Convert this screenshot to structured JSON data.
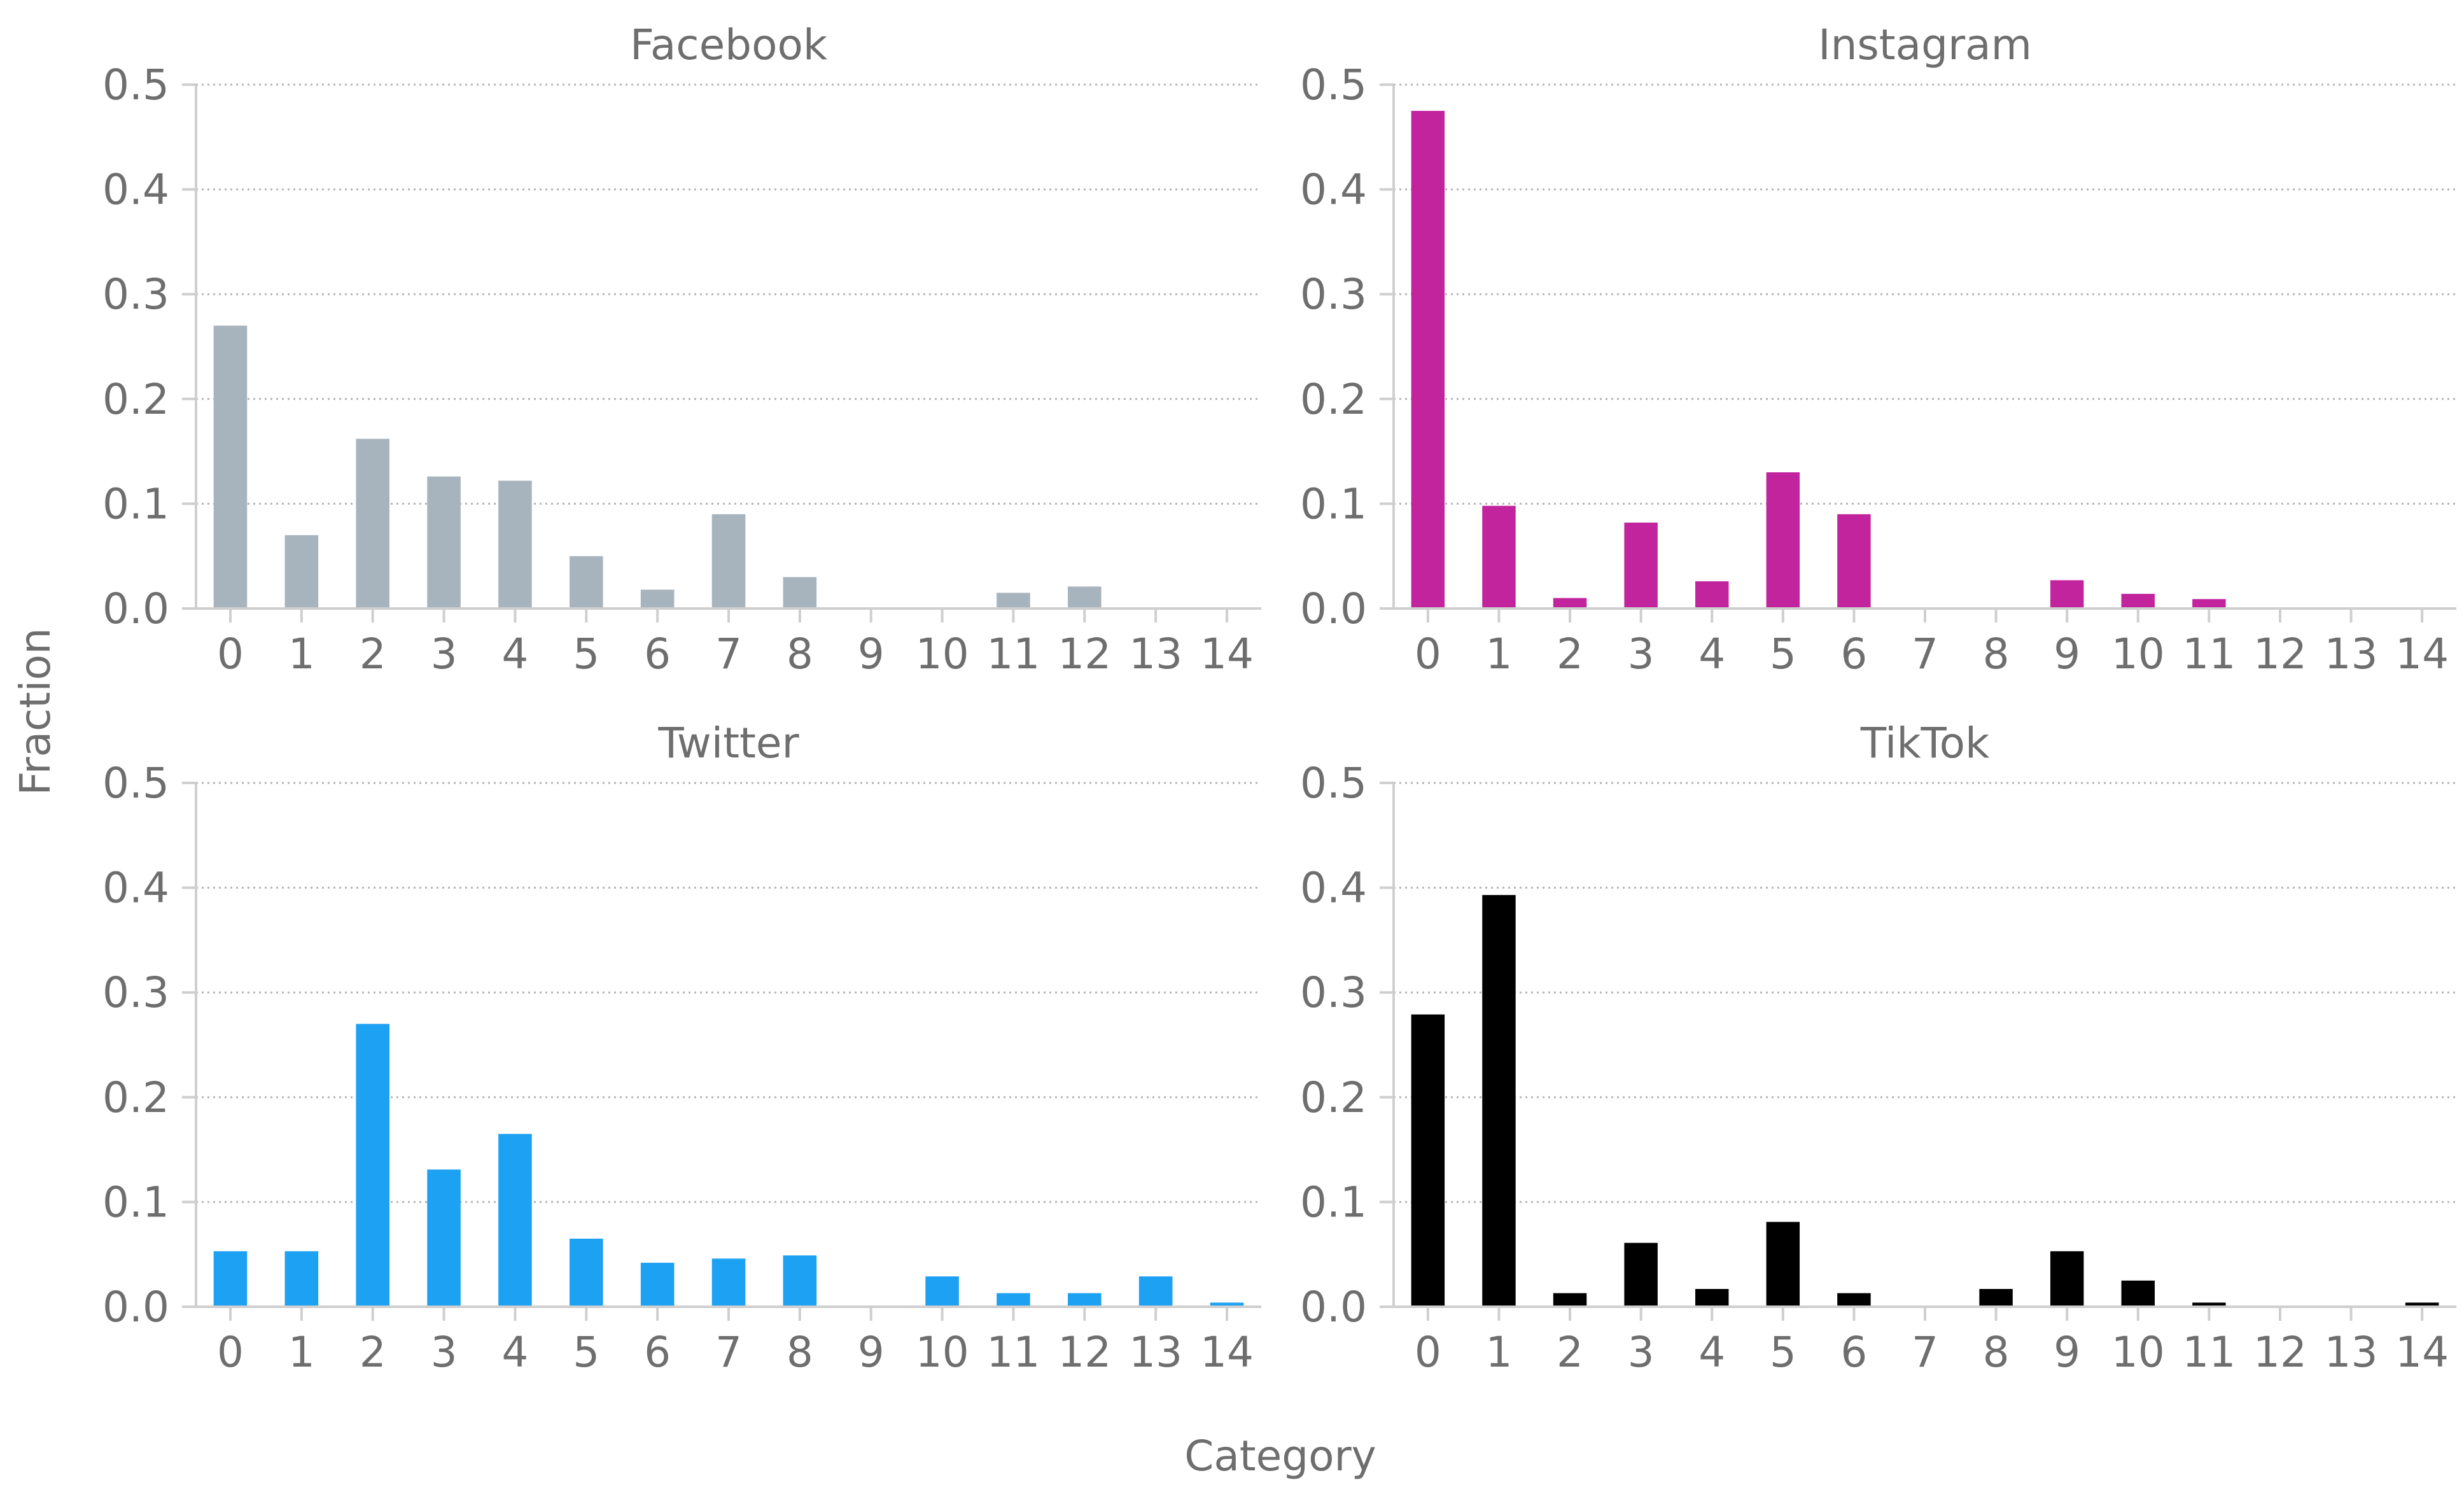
{
  "chart_data": {
    "type": "bar",
    "shared_xlabel": "Category",
    "shared_ylabel": "Fraction",
    "categories": [
      "0",
      "1",
      "2",
      "3",
      "4",
      "5",
      "6",
      "7",
      "8",
      "9",
      "10",
      "11",
      "12",
      "13",
      "14"
    ],
    "yticks": [
      "0.0",
      "0.1",
      "0.2",
      "0.3",
      "0.4",
      "0.5"
    ],
    "ylim": [
      0,
      0.5
    ],
    "grid": "horizontal-dotted",
    "panels": [
      {
        "title": "Facebook",
        "color": "#a8b4bd",
        "values": [
          0.27,
          0.07,
          0.162,
          0.126,
          0.122,
          0.05,
          0.018,
          0.09,
          0.03,
          0.0,
          0.0,
          0.015,
          0.021,
          0.0,
          0.0
        ]
      },
      {
        "title": "Instagram",
        "color": "#c1249d",
        "values": [
          0.475,
          0.098,
          0.01,
          0.082,
          0.026,
          0.13,
          0.09,
          0.0,
          0.0,
          0.027,
          0.014,
          0.009,
          0.0,
          0.0,
          0.0
        ]
      },
      {
        "title": "Twitter",
        "color": "#1da1f2",
        "values": [
          0.053,
          0.053,
          0.27,
          0.131,
          0.165,
          0.065,
          0.042,
          0.046,
          0.049,
          0.0,
          0.029,
          0.013,
          0.013,
          0.029,
          0.004
        ]
      },
      {
        "title": "TikTok",
        "color": "#000000",
        "values": [
          0.279,
          0.393,
          0.013,
          0.061,
          0.017,
          0.081,
          0.013,
          0.0,
          0.017,
          0.053,
          0.025,
          0.004,
          0.0,
          0.0,
          0.004
        ]
      }
    ]
  }
}
